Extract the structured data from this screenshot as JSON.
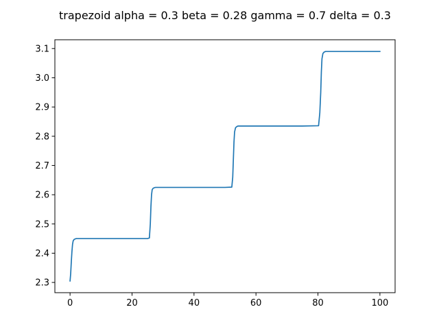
{
  "chart_data": {
    "type": "line",
    "title": "trapezoid alpha = 0.3 beta = 0.28 gamma = 0.7 delta = 0.3",
    "xlabel": "",
    "ylabel": "",
    "xlim": [
      -4.9,
      104.9
    ],
    "ylim": [
      2.265,
      3.13
    ],
    "xticks": [
      0,
      20,
      40,
      60,
      80,
      100
    ],
    "xtick_labels": [
      "0",
      "20",
      "40",
      "60",
      "80",
      "100"
    ],
    "yticks": [
      2.3,
      2.4,
      2.5,
      2.6,
      2.7,
      2.8,
      2.9,
      3.0,
      3.1
    ],
    "ytick_labels": [
      "2.3",
      "2.4",
      "2.5",
      "2.6",
      "2.7",
      "2.8",
      "2.9",
      "3.0",
      "3.1"
    ],
    "grid": false,
    "line_color": "#1f77b4",
    "series": [
      {
        "x": [
          0,
          0.2,
          0.4,
          0.6,
          0.8,
          1.0,
          1.3,
          1.7,
          2.0,
          5,
          10,
          15,
          20,
          25,
          25.6,
          25.9,
          26.1,
          26.3,
          26.5,
          26.8,
          27.2,
          27.6,
          30,
          35,
          40,
          45,
          50,
          52.2,
          52.5,
          52.7,
          52.9,
          53.1,
          53.4,
          53.8,
          54.2,
          60,
          65,
          70,
          75,
          80.2,
          80.6,
          80.9,
          81.1,
          81.3,
          81.6,
          82.0,
          82.5,
          85,
          90,
          95,
          100
        ],
        "y": [
          2.305,
          2.33,
          2.37,
          2.405,
          2.43,
          2.442,
          2.447,
          2.449,
          2.45,
          2.45,
          2.45,
          2.45,
          2.45,
          2.45,
          2.452,
          2.5,
          2.56,
          2.6,
          2.617,
          2.622,
          2.624,
          2.625,
          2.625,
          2.625,
          2.625,
          2.625,
          2.625,
          2.626,
          2.66,
          2.72,
          2.78,
          2.815,
          2.829,
          2.833,
          2.835,
          2.835,
          2.835,
          2.835,
          2.835,
          2.836,
          2.88,
          2.95,
          3.02,
          3.065,
          3.083,
          3.088,
          3.09,
          3.09,
          3.09,
          3.09,
          3.09
        ]
      }
    ]
  }
}
